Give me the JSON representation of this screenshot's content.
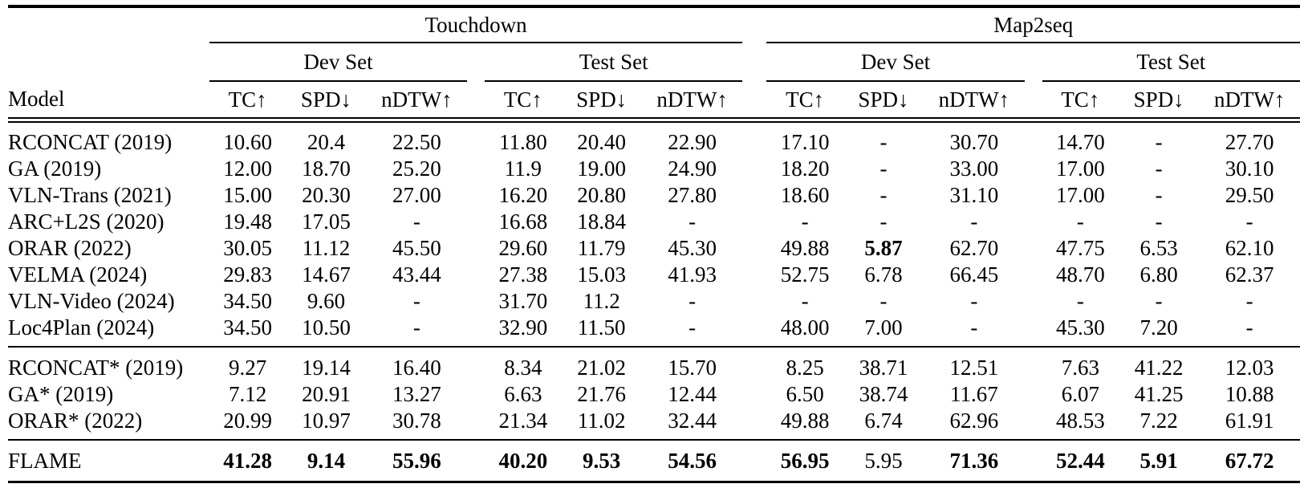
{
  "table": {
    "model_header": "Model",
    "datasets": [
      {
        "label": "Touchdown"
      },
      {
        "label": "Map2seq"
      }
    ],
    "set_labels": {
      "dev": "Dev Set",
      "test": "Test Set"
    },
    "metrics": [
      "TC↑",
      "SPD↓",
      "nDTW↑"
    ],
    "text_color": "#000000",
    "background_color": "#ffffff",
    "groups": [
      {
        "rows": [
          {
            "model": "RCONCAT (2019)",
            "values": [
              "10.60",
              "20.4",
              "22.50",
              "11.80",
              "20.40",
              "22.90",
              "17.10",
              "-",
              "30.70",
              "14.70",
              "-",
              "27.70"
            ],
            "bold_cols": []
          },
          {
            "model": "GA (2019)",
            "values": [
              "12.00",
              "18.70",
              "25.20",
              "11.9",
              "19.00",
              "24.90",
              "18.20",
              "-",
              "33.00",
              "17.00",
              "-",
              "30.10"
            ],
            "bold_cols": []
          },
          {
            "model": "VLN-Trans (2021)",
            "values": [
              "15.00",
              "20.30",
              "27.00",
              "16.20",
              "20.80",
              "27.80",
              "18.60",
              "-",
              "31.10",
              "17.00",
              "-",
              "29.50"
            ],
            "bold_cols": []
          },
          {
            "model": "ARC+L2S (2020)",
            "values": [
              "19.48",
              "17.05",
              "-",
              "16.68",
              "18.84",
              "-",
              "-",
              "-",
              "-",
              "-",
              "-",
              "-"
            ],
            "bold_cols": []
          },
          {
            "model": "ORAR (2022)",
            "values": [
              "30.05",
              "11.12",
              "45.50",
              "29.60",
              "11.79",
              "45.30",
              "49.88",
              "5.87",
              "62.70",
              "47.75",
              "6.53",
              "62.10"
            ],
            "bold_cols": [
              7
            ]
          },
          {
            "model": "VELMA (2024)",
            "values": [
              "29.83",
              "14.67",
              "43.44",
              "27.38",
              "15.03",
              "41.93",
              "52.75",
              "6.78",
              "66.45",
              "48.70",
              "6.80",
              "62.37"
            ],
            "bold_cols": []
          },
          {
            "model": "VLN-Video (2024)",
            "values": [
              "34.50",
              "9.60",
              "-",
              "31.70",
              "11.2",
              "-",
              "-",
              "-",
              "-",
              "-",
              "-",
              "-"
            ],
            "bold_cols": []
          },
          {
            "model": "Loc4Plan (2024)",
            "values": [
              "34.50",
              "10.50",
              "-",
              "32.90",
              "11.50",
              "-",
              "48.00",
              "7.00",
              "-",
              "45.30",
              "7.20",
              "-"
            ],
            "bold_cols": []
          }
        ]
      },
      {
        "rows": [
          {
            "model": "RCONCAT* (2019)",
            "values": [
              "9.27",
              "19.14",
              "16.40",
              "8.34",
              "21.02",
              "15.70",
              "8.25",
              "38.71",
              "12.51",
              "7.63",
              "41.22",
              "12.03"
            ],
            "bold_cols": []
          },
          {
            "model": "GA* (2019)",
            "values": [
              "7.12",
              "20.91",
              "13.27",
              "6.63",
              "21.76",
              "12.44",
              "6.50",
              "38.74",
              "11.67",
              "6.07",
              "41.25",
              "10.88"
            ],
            "bold_cols": []
          },
          {
            "model": "ORAR* (2022)",
            "values": [
              "20.99",
              "10.97",
              "30.78",
              "21.34",
              "11.02",
              "32.44",
              "49.88",
              "6.74",
              "62.96",
              "48.53",
              "7.22",
              "61.91"
            ],
            "bold_cols": []
          }
        ]
      },
      {
        "rows": [
          {
            "model": "FLAME",
            "values": [
              "41.28",
              "9.14",
              "55.96",
              "40.20",
              "9.53",
              "54.56",
              "56.95",
              "5.95",
              "71.36",
              "52.44",
              "5.91",
              "67.72"
            ],
            "bold_cols": [
              0,
              1,
              2,
              3,
              4,
              5,
              6,
              8,
              9,
              10,
              11
            ]
          }
        ]
      }
    ]
  }
}
